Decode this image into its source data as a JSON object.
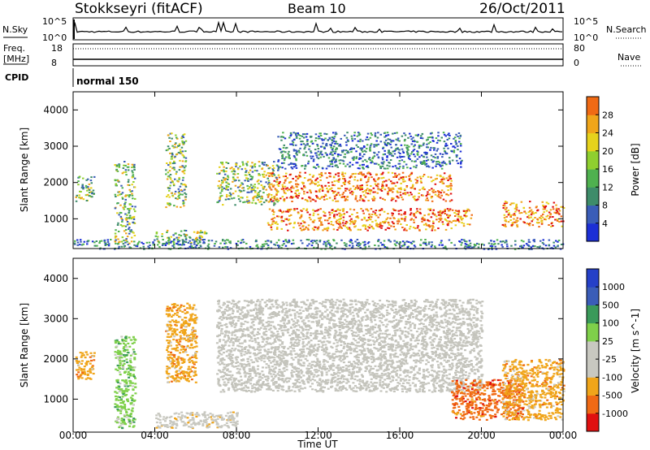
{
  "header": {
    "station": "Stokkseyri (fitACF)",
    "beam": "Beam 10",
    "date": "26/Oct/2011"
  },
  "strip": {
    "nsky_label": "N.Sky",
    "nsky_top": "10^5",
    "nsky_bottom": "10^0",
    "nsearch_label": "N.Search",
    "freq_label": "Freq.",
    "freq_unit": "[MHz]",
    "freq_ticks": [
      "18",
      "8"
    ],
    "nave_label": "Nave",
    "nave_ticks": [
      "80",
      "0"
    ],
    "cpid_label": "CPID",
    "cpid_value": "normal 150"
  },
  "colors": {
    "power": [
      "#1c2fd6",
      "#3a5db8",
      "#3e8c6a",
      "#4fb14f",
      "#8fcf2f",
      "#e6d21c",
      "#f0a51a",
      "#f06a14",
      "#e01010"
    ],
    "velocity": [
      "#e01010",
      "#f06a14",
      "#f0a51a",
      "#c8c8c0",
      "#c8c8c0",
      "#7fd04a",
      "#3a9a5a",
      "#3a5db8",
      "#2540c8"
    ],
    "ground_scatter": "#c4c4bc"
  },
  "chart_data": [
    {
      "type": "heatmap",
      "panel": "power",
      "ylabel": "Slant Range [km]",
      "yticks": [
        "1000",
        "2000",
        "3000",
        "4000"
      ],
      "ylim": [
        180,
        4500
      ],
      "colorbar_label": "Power [dB]",
      "colorbar_ticks": [
        "4",
        "8",
        "12",
        "16",
        "20",
        "24",
        "28"
      ],
      "xlim_hours": [
        0,
        24
      ],
      "echo_regions": [
        {
          "t": [
            0.1,
            1.0
          ],
          "r": [
            1500,
            2200
          ],
          "level": "mid"
        },
        {
          "t": [
            2.0,
            3.0
          ],
          "r": [
            300,
            2600
          ],
          "level": "mid"
        },
        {
          "t": [
            4.0,
            6.5
          ],
          "r": [
            300,
            700
          ],
          "level": "mid"
        },
        {
          "t": [
            4.5,
            5.5
          ],
          "r": [
            1300,
            3400
          ],
          "level": "mid"
        },
        {
          "t": [
            7.0,
            10.0
          ],
          "r": [
            1400,
            2600
          ],
          "level": "mid"
        },
        {
          "t": [
            9.5,
            18.5
          ],
          "r": [
            700,
            1300
          ],
          "level": "high"
        },
        {
          "t": [
            9.5,
            18.5
          ],
          "r": [
            1500,
            2300
          ],
          "level": "high"
        },
        {
          "t": [
            10.0,
            19.0
          ],
          "r": [
            2400,
            3400
          ],
          "level": "low"
        },
        {
          "t": [
            18.0,
            19.5
          ],
          "r": [
            800,
            1300
          ],
          "level": "high"
        },
        {
          "t": [
            21.0,
            24.0
          ],
          "r": [
            800,
            1500
          ],
          "level": "high"
        },
        {
          "t": [
            0.0,
            24.0
          ],
          "r": [
            180,
            450
          ],
          "level": "low"
        }
      ]
    },
    {
      "type": "heatmap",
      "panel": "velocity",
      "ylabel": "Slant Range [km]",
      "yticks": [
        "1000",
        "2000",
        "3000",
        "4000"
      ],
      "ylim": [
        180,
        4500
      ],
      "xlabel": "Time UT",
      "xticks": [
        "00:00",
        "04:00",
        "08:00",
        "12:00",
        "16:00",
        "20:00",
        "00:00"
      ],
      "xlim_hours": [
        0,
        24
      ],
      "colorbar_label": "Velocity [m s^-1]",
      "colorbar_ticks": [
        "1000",
        "500",
        "100",
        "25",
        "-25",
        "-100",
        "-500",
        "-1000"
      ],
      "echo_regions": [
        {
          "t": [
            0.1,
            1.0
          ],
          "r": [
            1500,
            2200
          ],
          "velocity": -300
        },
        {
          "t": [
            2.0,
            3.0
          ],
          "r": [
            300,
            2600
          ],
          "velocity": 100
        },
        {
          "t": [
            4.0,
            8.0
          ],
          "r": [
            300,
            700
          ],
          "velocity": -80
        },
        {
          "t": [
            4.5,
            6.0
          ],
          "r": [
            1400,
            3400
          ],
          "velocity": -400
        },
        {
          "t": [
            7.0,
            20.0
          ],
          "r": [
            1200,
            3500
          ],
          "velocity": 0
        },
        {
          "t": [
            18.5,
            22.0
          ],
          "r": [
            500,
            1500
          ],
          "velocity": -500
        },
        {
          "t": [
            21.0,
            24.0
          ],
          "r": [
            500,
            2000
          ],
          "velocity": -300
        }
      ]
    }
  ]
}
